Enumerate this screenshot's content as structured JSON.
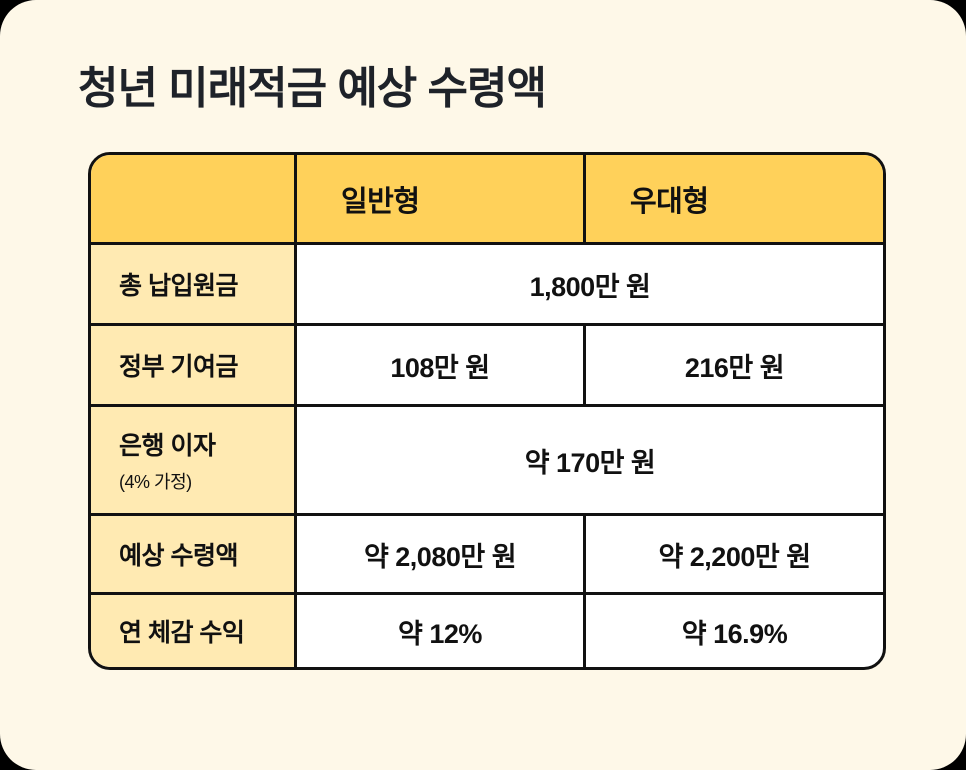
{
  "title": "청년 미래적금 예상 수령액",
  "colors": {
    "background": "#FEF8E8",
    "header_fill": "#FFD15A",
    "label_fill": "#FFEAB2",
    "cell_fill": "#FFFFFF",
    "border": "#111111",
    "text": "#1E2229"
  },
  "table": {
    "columns": [
      "",
      "일반형",
      "우대형"
    ],
    "rows": [
      {
        "label": "총 납입원금",
        "sublabel": "",
        "general": "1,800만 원",
        "preferred": "1,800만 원",
        "merged": true,
        "value": "1,800만 원"
      },
      {
        "label": "정부 기여금",
        "sublabel": "",
        "general": "108만 원",
        "preferred": "216만 원",
        "merged": false
      },
      {
        "label": "은행 이자",
        "sublabel": "(4% 가정)",
        "general": "약 170만 원",
        "preferred": "약 170만 원",
        "merged": true,
        "value": "약 170만 원"
      },
      {
        "label": "예상 수령액",
        "sublabel": "",
        "general": "약 2,080만 원",
        "preferred": "약 2,200만 원",
        "merged": false
      },
      {
        "label": "연 체감 수익",
        "sublabel": "",
        "general": "약 12%",
        "preferred": "약 16.9%",
        "merged": false
      }
    ]
  }
}
